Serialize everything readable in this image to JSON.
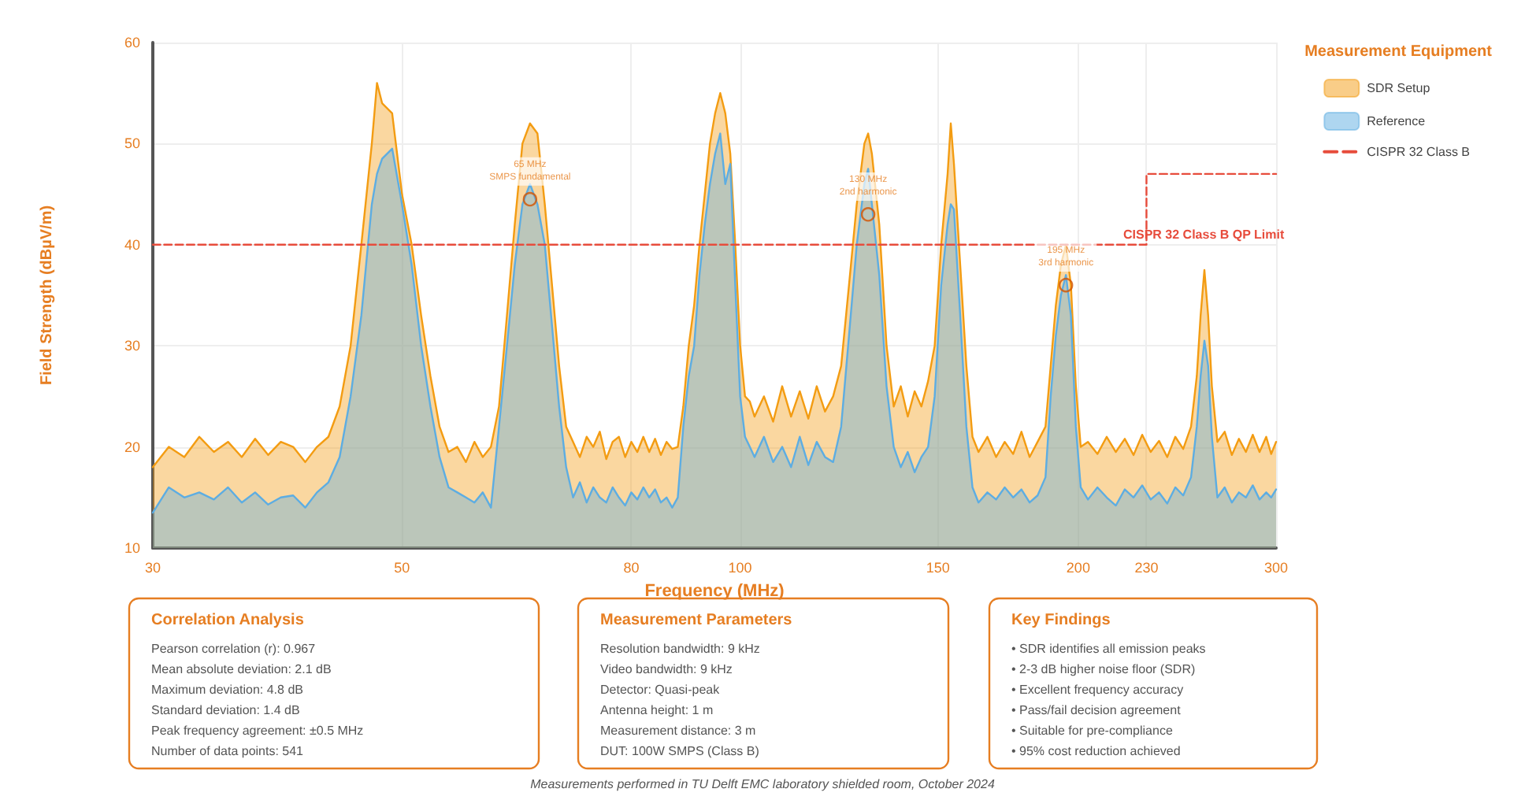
{
  "chart_data": {
    "type": "area",
    "xlabel": "Frequency (MHz)",
    "ylabel": "Field Strength (dBµV/m)",
    "legend_title": "Measurement Equipment",
    "legend": "top right",
    "grid": true,
    "log": "x",
    "marker": "none",
    "xlim": [
      30,
      300
    ],
    "xticks": [
      30,
      50,
      80,
      100,
      150,
      200,
      230,
      300
    ],
    "ylim": [
      10,
      60
    ],
    "yticks": [
      10,
      20,
      30,
      40,
      50,
      60
    ],
    "x": [
      30,
      31,
      32,
      33,
      34,
      35,
      36,
      37,
      38,
      39,
      40,
      41,
      42,
      43,
      44,
      45,
      46,
      47,
      47.5,
      48,
      49,
      50,
      51,
      52,
      53,
      54,
      55,
      56,
      57,
      58,
      59,
      60,
      61,
      62,
      63,
      64,
      65,
      66,
      67,
      68,
      69,
      70,
      71,
      72,
      73,
      74,
      75,
      76,
      77,
      78,
      79,
      80,
      81,
      82,
      83,
      84,
      85,
      86,
      87,
      88,
      89,
      90,
      91,
      92,
      93,
      94,
      95,
      96,
      97,
      98,
      99,
      100,
      101,
      102,
      103,
      105,
      107,
      109,
      111,
      113,
      115,
      117,
      119,
      121,
      123,
      125,
      127,
      129,
      130,
      131,
      133,
      135,
      137,
      139,
      141,
      143,
      145,
      147,
      149,
      151,
      153,
      154,
      155,
      157,
      159,
      161,
      163,
      166,
      169,
      172,
      175,
      178,
      181,
      184,
      187,
      189,
      191,
      193,
      195,
      197,
      199,
      201,
      204,
      208,
      212,
      216,
      220,
      224,
      228,
      232,
      236,
      240,
      244,
      248,
      252,
      255,
      257,
      259,
      261,
      263,
      266,
      270,
      274,
      278,
      282,
      286,
      290,
      294,
      297,
      300
    ],
    "series": [
      {
        "name": "SDR Setup",
        "color": "#f39c12",
        "values": [
          18,
          20,
          19,
          21,
          19.5,
          20.5,
          19,
          20.8,
          19.2,
          20.5,
          20,
          18.5,
          20,
          21,
          24,
          30,
          40,
          50,
          56,
          54,
          53,
          45,
          40,
          33,
          27,
          22,
          19.5,
          20,
          18.5,
          20.5,
          19,
          20,
          24,
          33,
          42,
          50,
          52,
          51,
          44,
          36,
          28,
          22,
          20.5,
          19,
          21,
          20,
          21.5,
          18.8,
          20.5,
          21,
          19,
          20.5,
          19.5,
          21,
          19.5,
          20.8,
          19.2,
          20.5,
          19.8,
          20,
          24,
          30,
          34,
          40,
          45,
          50,
          53,
          55,
          53,
          49,
          40,
          30,
          25,
          24.5,
          23,
          25,
          22.5,
          26,
          23,
          25.5,
          22.8,
          26,
          23.5,
          25,
          28,
          36,
          44,
          50,
          51,
          49,
          42,
          30,
          24,
          26,
          23,
          25.5,
          24,
          26.5,
          30,
          40,
          47,
          52,
          48,
          38,
          28,
          21,
          19.5,
          21,
          19,
          20.5,
          19.3,
          21.5,
          19,
          20.5,
          22,
          28,
          34,
          38,
          40,
          36,
          26,
          20,
          20.5,
          19.3,
          21,
          19.5,
          20.8,
          19.2,
          21.2,
          19.5,
          20.6,
          19,
          21,
          19.8,
          22,
          27,
          33,
          37.5,
          33,
          26,
          20.5,
          21.5,
          19.2,
          20.8,
          19.5,
          21.2,
          19.5,
          21,
          19.3,
          20.5
        ]
      },
      {
        "name": "Reference",
        "color": "#5dade2",
        "values": [
          13.5,
          16,
          15,
          15.5,
          14.8,
          16,
          14.5,
          15.5,
          14.3,
          15,
          15.2,
          14,
          15.5,
          16.5,
          19,
          25,
          33,
          44,
          47,
          48.5,
          49.5,
          44,
          38,
          30,
          24,
          19,
          16,
          15.5,
          15,
          14.5,
          15.5,
          14,
          22,
          30,
          38,
          44,
          46,
          44,
          40,
          32,
          24,
          18,
          15,
          16.5,
          14.5,
          16,
          15,
          14.5,
          16,
          15,
          14.2,
          15.5,
          14.8,
          16,
          15,
          15.8,
          14.5,
          15,
          14,
          15,
          22,
          27,
          30,
          37,
          42,
          46,
          49,
          51,
          46,
          48,
          36,
          25,
          21,
          20,
          19,
          21,
          18.5,
          20,
          18,
          21,
          18.2,
          20.5,
          19,
          18.5,
          22,
          31,
          40,
          46,
          47.5,
          44,
          37,
          26,
          20,
          18,
          19.5,
          17.5,
          19,
          20,
          25,
          36,
          42,
          44,
          43.5,
          33,
          22,
          16,
          14.5,
          15.5,
          14.8,
          16,
          15,
          15.8,
          14.5,
          15.2,
          17,
          25,
          31,
          35,
          37,
          33,
          22,
          16,
          14.8,
          16,
          15,
          14.2,
          15.8,
          15,
          16.2,
          14.8,
          15.5,
          14.4,
          16,
          15.2,
          17,
          22,
          27,
          30.5,
          28,
          21,
          15,
          16,
          14.5,
          15.5,
          15,
          16.2,
          14.8,
          15.5,
          15,
          15.8
        ]
      },
      {
        "name": "CISPR 32 Class B",
        "type": "line",
        "line_style": "dashed",
        "color": "#e74c3c",
        "x": [
          30,
          230,
          230,
          300
        ],
        "values": [
          40,
          40,
          47,
          47
        ]
      }
    ],
    "annotations": [
      {
        "text": "65 MHz\nSMPS fundamental",
        "x": 65,
        "y": 44.5
      },
      {
        "text": "130 MHz\n2nd harmonic",
        "x": 130,
        "y": 43
      },
      {
        "text": "195 MHz\n3rd harmonic",
        "x": 195,
        "y": 36
      },
      "CISPR 32 Class B QP Limit",
      "Correlation Analysis\nPearson correlation (r): 0.967\nMean absolute deviation: 2.1 dB\nMaximum deviation: 4.8 dB\nStandard deviation: 1.4 dB\nPeak frequency agreement: ±0.5 MHz\nNumber of data points: 541",
      "Measurement Parameters\nResolution bandwidth: 9 kHz\nVideo bandwidth: 9 kHz\nDetector: Quasi-peak\nAntenna height: 1 m\nMeasurement distance: 3 m\nDUT: 100W SMPS (Class B)",
      "Key Findings\n• SDR identifies all emission peaks\n• 2-3 dB higher noise floor (SDR)\n• Excellent frequency accuracy\n• Pass/fail decision agreement\n• Suitable for pre-compliance\n• 95% cost reduction achieved",
      "Measurements performed in TU Delft EMC laboratory shielded room, October 2024"
    ]
  }
}
